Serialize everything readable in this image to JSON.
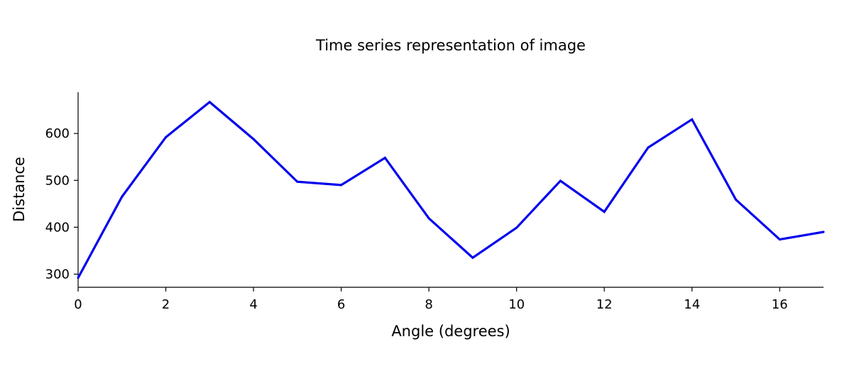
{
  "chart_data": {
    "type": "line",
    "title": "Time series representation of image",
    "xlabel": "Angle (degrees)",
    "ylabel": "Distance",
    "xlim": [
      0,
      17
    ],
    "ylim": [
      272,
      688
    ],
    "xticks": [
      0,
      2,
      4,
      6,
      8,
      10,
      12,
      14,
      16
    ],
    "yticks": [
      300,
      400,
      500,
      600
    ],
    "grid": false,
    "series": [
      {
        "name": "Distance",
        "color": "#0000ee",
        "x": [
          0,
          1,
          2,
          3,
          4,
          5,
          6,
          7,
          8,
          9,
          10,
          11,
          12,
          13,
          14,
          15,
          16,
          17
        ],
        "values": [
          292,
          465,
          592,
          667,
          588,
          497,
          490,
          548,
          419,
          335,
          399,
          499,
          433,
          570,
          630,
          459,
          374,
          390
        ]
      }
    ]
  }
}
